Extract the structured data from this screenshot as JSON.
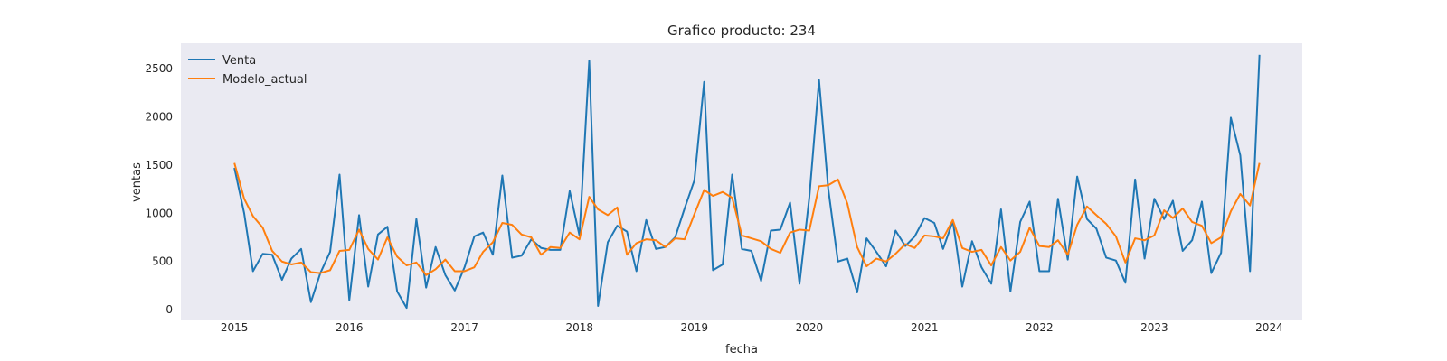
{
  "chart_data": {
    "type": "line",
    "title": "Grafico producto: 234",
    "xlabel": "fecha",
    "ylabel": "ventas",
    "x_start": "2015-01",
    "x_frequency": "monthly",
    "xlim": [
      "2014-07-15",
      "2024-04-15"
    ],
    "ylim": [
      -110,
      2760
    ],
    "x_ticks": [
      "2015",
      "2016",
      "2017",
      "2018",
      "2019",
      "2020",
      "2021",
      "2022",
      "2023",
      "2024"
    ],
    "y_ticks": [
      0,
      500,
      1000,
      1500,
      2000,
      2500
    ],
    "grid": false,
    "legend": "upper-left",
    "background": "#eaeaf2",
    "series": [
      {
        "name": "Venta",
        "color": "#1f77b4",
        "values": [
          1470,
          1000,
          400,
          580,
          570,
          310,
          530,
          630,
          80,
          380,
          600,
          1400,
          100,
          980,
          240,
          780,
          860,
          190,
          20,
          940,
          230,
          650,
          360,
          200,
          440,
          760,
          800,
          570,
          1390,
          540,
          560,
          730,
          640,
          620,
          620,
          1230,
          770,
          2580,
          40,
          700,
          870,
          810,
          400,
          930,
          630,
          650,
          750,
          1050,
          1340,
          2360,
          410,
          470,
          1400,
          630,
          610,
          300,
          820,
          830,
          1110,
          270,
          1160,
          2380,
          1260,
          500,
          530,
          180,
          740,
          600,
          450,
          820,
          660,
          760,
          950,
          900,
          630,
          920,
          240,
          710,
          440,
          270,
          1040,
          190,
          910,
          1120,
          400,
          400,
          1150,
          520,
          1380,
          940,
          840,
          540,
          510,
          280,
          1350,
          530,
          1150,
          940,
          1130,
          610,
          720,
          1120,
          380,
          590,
          1990,
          1600,
          400,
          2640
        ]
      },
      {
        "name": "Modelo_actual",
        "color": "#ff7f0e",
        "values": [
          1520,
          1150,
          970,
          850,
          610,
          500,
          470,
          490,
          390,
          380,
          410,
          610,
          620,
          830,
          630,
          520,
          750,
          550,
          460,
          490,
          360,
          420,
          520,
          400,
          400,
          440,
          600,
          700,
          900,
          880,
          780,
          750,
          570,
          650,
          640,
          800,
          730,
          1170,
          1040,
          980,
          1060,
          570,
          690,
          730,
          720,
          650,
          740,
          730,
          990,
          1240,
          1180,
          1220,
          1160,
          770,
          740,
          710,
          630,
          590,
          800,
          830,
          820,
          1280,
          1290,
          1350,
          1100,
          650,
          450,
          530,
          500,
          580,
          680,
          640,
          770,
          760,
          740,
          930,
          640,
          600,
          620,
          460,
          650,
          510,
          600,
          850,
          660,
          650,
          720,
          570,
          880,
          1070,
          980,
          890,
          760,
          490,
          740,
          720,
          770,
          1030,
          950,
          1050,
          910,
          870,
          690,
          750,
          1020,
          1200,
          1080,
          1520
        ]
      }
    ]
  }
}
